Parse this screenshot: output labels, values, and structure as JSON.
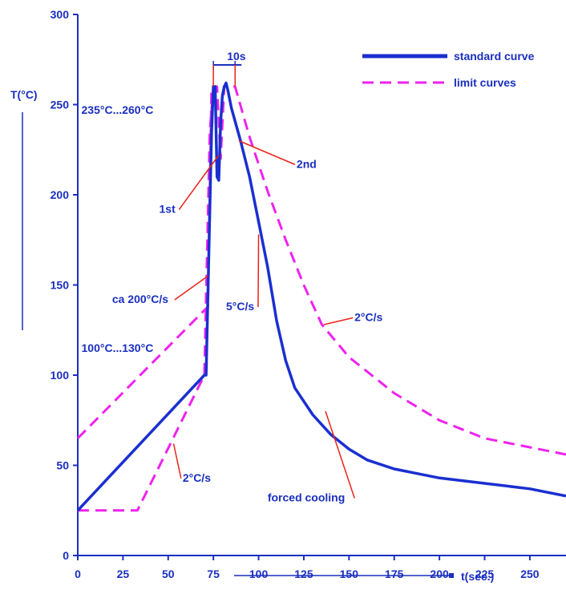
{
  "chart_data": {
    "type": "line",
    "ylabel": "T(°C)",
    "xlabel": "t(sec.)",
    "xlim": [
      0,
      270
    ],
    "ylim": [
      0,
      300
    ],
    "x_ticks": [
      0,
      25,
      50,
      75,
      100,
      125,
      150,
      175,
      200,
      225,
      250
    ],
    "y_ticks": [
      0,
      50,
      100,
      150,
      200,
      250,
      300
    ],
    "legend_position": "top-right",
    "colors": {
      "axis": "#1a2fbf",
      "standard": "#1a2fd0",
      "limit": "#ee22ee",
      "leader": "#e8231a"
    },
    "series": [
      {
        "name": "standard curve",
        "style": "solid",
        "points": [
          [
            0,
            25
          ],
          [
            70,
            100
          ],
          [
            71,
            100
          ],
          [
            74,
            235
          ],
          [
            75,
            260
          ],
          [
            76,
            260
          ],
          [
            77,
            210
          ],
          [
            78,
            208
          ],
          [
            79,
            240
          ],
          [
            80,
            255
          ],
          [
            81,
            260
          ],
          [
            82,
            262
          ],
          [
            83,
            258
          ],
          [
            85,
            248
          ],
          [
            90,
            230
          ],
          [
            95,
            210
          ],
          [
            100,
            185
          ],
          [
            105,
            160
          ],
          [
            110,
            130
          ],
          [
            115,
            108
          ],
          [
            120,
            93
          ],
          [
            130,
            78
          ],
          [
            140,
            67
          ],
          [
            150,
            59
          ],
          [
            160,
            53
          ],
          [
            175,
            48
          ],
          [
            200,
            43
          ],
          [
            225,
            40
          ],
          [
            250,
            37
          ],
          [
            270,
            33
          ]
        ]
      },
      {
        "name": "limit curves",
        "style": "dashed",
        "points": [
          [
            0,
            65
          ],
          [
            72,
            138
          ],
          [
            74,
            260
          ],
          [
            77,
            260
          ],
          [
            79,
            220
          ],
          [
            81,
            260
          ],
          [
            87,
            260
          ],
          [
            95,
            232
          ],
          [
            105,
            202
          ],
          [
            115,
            175
          ],
          [
            125,
            150
          ],
          [
            135,
            128
          ],
          [
            150,
            110
          ],
          [
            175,
            90
          ],
          [
            200,
            75
          ],
          [
            225,
            65
          ],
          [
            250,
            60
          ],
          [
            270,
            56
          ]
        ]
      },
      {
        "name": "",
        "style": "dashed",
        "points": [
          [
            0,
            25
          ],
          [
            33,
            25
          ],
          [
            70,
            100
          ],
          [
            73,
            235
          ],
          [
            75,
            260
          ],
          [
            77,
            260
          ]
        ]
      }
    ],
    "dimension": {
      "label": "10s",
      "x_start": 75,
      "x_end": 87,
      "y": 272
    },
    "annotations": [
      {
        "text": "235°C...260°C",
        "x": 2,
        "y": 245
      },
      {
        "text": "1st",
        "x": 45,
        "y": 190,
        "leader_to": [
          78,
          222
        ]
      },
      {
        "text": "2nd",
        "x": 121,
        "y": 215,
        "leader_to": [
          89,
          230
        ]
      },
      {
        "text": "ca 200°C/s",
        "x": 19,
        "y": 140,
        "leader_to": [
          72,
          155
        ]
      },
      {
        "text": "5°C/s",
        "x": 82,
        "y": 136,
        "leader_to": [
          100,
          178
        ]
      },
      {
        "text": "2°C/s",
        "x": 153,
        "y": 130,
        "leader_to": [
          136,
          128
        ]
      },
      {
        "text": "100°C...130°C",
        "x": 2,
        "y": 113
      },
      {
        "text": "2°C/s",
        "x": 58,
        "y": 41,
        "leader_to": [
          53,
          62
        ]
      },
      {
        "text": "forced cooling",
        "x": 105,
        "y": 30,
        "leader_to": [
          137,
          80
        ]
      }
    ]
  }
}
